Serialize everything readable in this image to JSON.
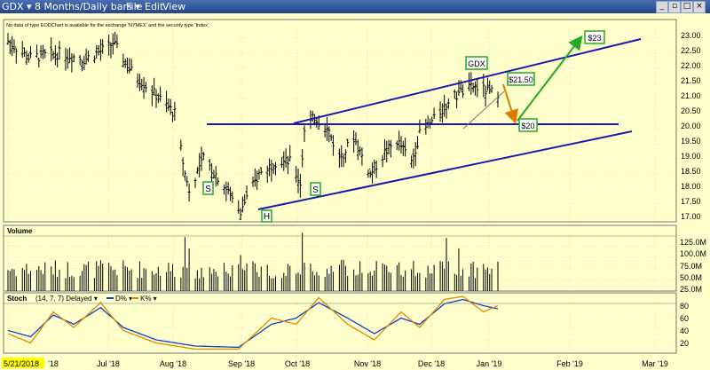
{
  "app": {
    "title": "GDX ▾ 8 Months/Daily bars ▾",
    "menu": [
      "File",
      "Edit",
      "View"
    ],
    "notice": "No data of type EODChart is available for the exchange 'NYMEX' and the security type 'Index'"
  },
  "price_panel": {
    "axis_labels": [
      "23.00",
      "22.50",
      "22.00",
      "21.50",
      "21.00",
      "20.50",
      "20.00",
      "19.50",
      "19.00",
      "18.50",
      "18.00",
      "17.50",
      "17.00"
    ],
    "annotations": {
      "s1": "S",
      "s2": "S",
      "h": "H",
      "gdx": "GDX",
      "p2150": "$21.50",
      "p20": "$20",
      "p23": "$23"
    }
  },
  "volume_panel": {
    "title": "Volume",
    "axis_labels": [
      "125.0M",
      "100.0M",
      "75.0M",
      "50.0M",
      "25.0M"
    ]
  },
  "stoch_panel": {
    "title": "Stoch",
    "params": "(14, 7, 7) Delayed ▾",
    "legend_d": "D% ▾",
    "legend_k": "K% ▾",
    "axis_labels": [
      "80",
      "60",
      "40",
      "20"
    ]
  },
  "x_axis": {
    "highlight": "5/21/2018",
    "labels": [
      "'18",
      "Jul '18",
      "Aug '18",
      "Sep '18",
      "Oct '18",
      "Nov '18",
      "Dec '18",
      "Jan '19",
      "Feb '19",
      "Mar '19"
    ]
  },
  "colors": {
    "background": "#ffffcc",
    "trendline": "#1a1aaa",
    "green_arrow": "#22aa22",
    "orange_arrow": "#e07b00",
    "d_line": "#1040c8",
    "k_line": "#e08a00",
    "date_highlight": "#ffff00"
  },
  "chart_data": [
    {
      "type": "ohlc",
      "title": "GDX 8 Months/Daily bars",
      "ylim": [
        16.8,
        23.2
      ],
      "grid": true,
      "x_ticks": [
        "5/21/2018",
        "Jul '18",
        "Aug '18",
        "Sep '18",
        "Oct '18",
        "Nov '18",
        "Dec '18",
        "Jan '19",
        "Feb '19",
        "Mar '19"
      ],
      "close_anchors": [
        {
          "date": "2018-05-21",
          "close": 22.9
        },
        {
          "date": "2018-05-31",
          "close": 22.35
        },
        {
          "date": "2018-06-15",
          "close": 22.5
        },
        {
          "date": "2018-06-27",
          "close": 22.3
        },
        {
          "date": "2018-07-09",
          "close": 22.7
        },
        {
          "date": "2018-07-11",
          "close": 22.85
        },
        {
          "date": "2018-07-20",
          "close": 21.9
        },
        {
          "date": "2018-08-01",
          "close": 21.1
        },
        {
          "date": "2018-08-10",
          "close": 20.5
        },
        {
          "date": "2018-08-15",
          "close": 18.5
        },
        {
          "date": "2018-08-17",
          "close": 18.0
        },
        {
          "date": "2018-08-24",
          "close": 19.0
        },
        {
          "date": "2018-08-31",
          "close": 18.4
        },
        {
          "date": "2018-09-11",
          "close": 17.3
        },
        {
          "date": "2018-09-20",
          "close": 18.5
        },
        {
          "date": "2018-09-28",
          "close": 18.9
        },
        {
          "date": "2018-10-05",
          "close": 18.9
        },
        {
          "date": "2018-10-10",
          "close": 18.2
        },
        {
          "date": "2018-10-12",
          "close": 19.9
        },
        {
          "date": "2018-10-17",
          "close": 20.4
        },
        {
          "date": "2018-10-24",
          "close": 19.9
        },
        {
          "date": "2018-10-29",
          "close": 19.0
        },
        {
          "date": "2018-11-05",
          "close": 19.7
        },
        {
          "date": "2018-11-13",
          "close": 18.5
        },
        {
          "date": "2018-11-20",
          "close": 19.2
        },
        {
          "date": "2018-11-26",
          "close": 19.6
        },
        {
          "date": "2018-12-03",
          "close": 18.9
        },
        {
          "date": "2018-12-07",
          "close": 19.8
        },
        {
          "date": "2018-12-14",
          "close": 20.3
        },
        {
          "date": "2018-12-21",
          "close": 20.9
        },
        {
          "date": "2018-12-27",
          "close": 21.2
        },
        {
          "date": "2019-01-03",
          "close": 21.4
        },
        {
          "date": "2019-01-10",
          "close": 21.2
        }
      ],
      "annotations": [
        {
          "text": "S",
          "date": "2018-08-17",
          "price": 18.0
        },
        {
          "text": "S",
          "date": "2018-10-10",
          "price": 18.0
        },
        {
          "text": "H",
          "date": "2018-09-11",
          "price": 17.25
        },
        {
          "text": "GDX",
          "date": "2018-12-24",
          "price": 22.0
        },
        {
          "text": "$21.50",
          "date": "2019-01-10",
          "price": 21.5
        },
        {
          "text": "$20",
          "date": "2019-01-16",
          "price": 20.0
        },
        {
          "text": "$23",
          "date": "2019-02-20",
          "price": 23.0
        }
      ],
      "trendlines": [
        {
          "name": "upper channel",
          "from": {
            "date": "2018-10-01",
            "price": 20.0
          },
          "to": {
            "date": "2019-02-28",
            "price": 22.9
          }
        },
        {
          "name": "lower channel",
          "from": {
            "date": "2018-09-11",
            "price": 17.25
          },
          "to": {
            "date": "2019-02-28",
            "price": 19.8
          }
        },
        {
          "name": "neckline",
          "from": {
            "date": "2018-08-20",
            "price": 20.0
          },
          "to": {
            "date": "2019-02-28",
            "price": 20.0
          }
        }
      ]
    },
    {
      "type": "bar",
      "title": "Volume",
      "ylim": [
        0,
        135
      ],
      "unit": "M"
    },
    {
      "type": "line",
      "title": "Stoch",
      "ylim": [
        0,
        100
      ],
      "series": [
        {
          "name": "D%",
          "anchors": [
            [
              "2018-05-21",
              35
            ],
            [
              "2018-06-01",
              25
            ],
            [
              "2018-06-12",
              60
            ],
            [
              "2018-06-22",
              45
            ],
            [
              "2018-07-05",
              72
            ],
            [
              "2018-07-16",
              40
            ],
            [
              "2018-08-01",
              20
            ],
            [
              "2018-08-20",
              10
            ],
            [
              "2018-09-10",
              8
            ],
            [
              "2018-09-26",
              45
            ],
            [
              "2018-10-08",
              55
            ],
            [
              "2018-10-19",
              80
            ],
            [
              "2018-11-02",
              55
            ],
            [
              "2018-11-15",
              30
            ],
            [
              "2018-11-28",
              55
            ],
            [
              "2018-12-07",
              45
            ],
            [
              "2018-12-19",
              78
            ],
            [
              "2018-12-28",
              85
            ],
            [
              "2019-01-07",
              75
            ],
            [
              "2019-01-14",
              70
            ]
          ]
        },
        {
          "name": "K%",
          "anchors": [
            [
              "2018-05-21",
              30
            ],
            [
              "2018-06-01",
              15
            ],
            [
              "2018-06-12",
              65
            ],
            [
              "2018-06-22",
              40
            ],
            [
              "2018-07-05",
              80
            ],
            [
              "2018-07-16",
              35
            ],
            [
              "2018-08-01",
              15
            ],
            [
              "2018-08-20",
              5
            ],
            [
              "2018-09-10",
              5
            ],
            [
              "2018-09-26",
              55
            ],
            [
              "2018-10-08",
              45
            ],
            [
              "2018-10-19",
              88
            ],
            [
              "2018-11-02",
              45
            ],
            [
              "2018-11-15",
              20
            ],
            [
              "2018-11-28",
              65
            ],
            [
              "2018-12-07",
              40
            ],
            [
              "2018-12-19",
              85
            ],
            [
              "2018-12-28",
              90
            ],
            [
              "2019-01-07",
              65
            ],
            [
              "2019-01-14",
              75
            ]
          ]
        }
      ]
    }
  ]
}
